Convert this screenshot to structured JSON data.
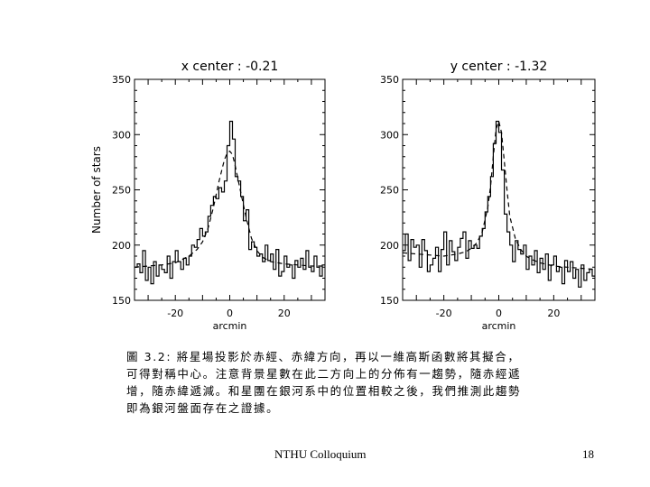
{
  "chart_data": [
    {
      "type": "line",
      "title": "x center : -0.21",
      "xlabel": "arcmin",
      "ylabel": "Number of stars",
      "xlim": [
        -35,
        35
      ],
      "ylim": [
        150,
        350
      ],
      "xticks": [
        -20,
        0,
        20
      ],
      "yticks": [
        150,
        200,
        250,
        300,
        350
      ],
      "grid": false,
      "series": [
        {
          "style": "histogram",
          "x": [
            -35,
            -34,
            -33,
            -32,
            -31,
            -30,
            -29,
            -28,
            -27,
            -26,
            -25,
            -24,
            -23,
            -22,
            -21,
            -20,
            -19,
            -18,
            -17,
            -16,
            -15,
            -14,
            -13,
            -12,
            -11,
            -10,
            -9,
            -8,
            -7,
            -6,
            -5,
            -4,
            -3,
            -2,
            -1,
            0,
            1,
            2,
            3,
            4,
            5,
            6,
            7,
            8,
            9,
            10,
            11,
            12,
            13,
            14,
            15,
            16,
            17,
            18,
            19,
            20,
            21,
            22,
            23,
            24,
            25,
            26,
            27,
            28,
            29,
            30,
            31,
            32,
            33,
            34
          ],
          "values": [
            180,
            183,
            175,
            195,
            168,
            180,
            165,
            185,
            172,
            182,
            178,
            175,
            190,
            170,
            185,
            195,
            185,
            178,
            188,
            182,
            190,
            200,
            198,
            205,
            215,
            208,
            212,
            226,
            236,
            244,
            242,
            252,
            248,
            258,
            290,
            312,
            296,
            262,
            258,
            244,
            222,
            232,
            196,
            203,
            198,
            190,
            192,
            185,
            200,
            186,
            192,
            178,
            196,
            172,
            176,
            190,
            180,
            182,
            170,
            186,
            180,
            188,
            178,
            195,
            180,
            176,
            190,
            180,
            172,
            182
          ]
        },
        {
          "style": "dashed",
          "x": [
            -35,
            -30,
            -25,
            -20,
            -15,
            -12,
            -10,
            -8,
            -6,
            -4,
            -2,
            -1,
            0,
            1,
            2,
            4,
            6,
            8,
            10,
            12,
            15,
            20,
            25,
            30,
            35
          ],
          "values": [
            180,
            181,
            182,
            184,
            190,
            196,
            203,
            215,
            234,
            257,
            277,
            283,
            285,
            282,
            272,
            248,
            225,
            206,
            195,
            189,
            185,
            183,
            182,
            181,
            181
          ]
        }
      ]
    },
    {
      "type": "line",
      "title": "y center : -1.32",
      "xlabel": "arcmin",
      "ylabel": "",
      "xlim": [
        -35,
        35
      ],
      "ylim": [
        150,
        350
      ],
      "xticks": [
        -20,
        0,
        20
      ],
      "yticks": [
        150,
        200,
        250,
        300,
        350
      ],
      "grid": false,
      "series": [
        {
          "style": "histogram",
          "x": [
            -35,
            -34,
            -33,
            -32,
            -31,
            -30,
            -29,
            -28,
            -27,
            -26,
            -25,
            -24,
            -23,
            -22,
            -21,
            -20,
            -19,
            -18,
            -17,
            -16,
            -15,
            -14,
            -13,
            -12,
            -11,
            -10,
            -9,
            -8,
            -7,
            -6,
            -5,
            -4,
            -3,
            -2,
            -1,
            0,
            1,
            2,
            3,
            4,
            5,
            6,
            7,
            8,
            9,
            10,
            11,
            12,
            13,
            14,
            15,
            16,
            17,
            18,
            19,
            20,
            21,
            22,
            23,
            24,
            25,
            26,
            27,
            28,
            29,
            30,
            31,
            32,
            33,
            34
          ],
          "values": [
            195,
            210,
            186,
            205,
            198,
            200,
            180,
            205,
            195,
            176,
            182,
            188,
            198,
            176,
            196,
            212,
            182,
            204,
            194,
            186,
            198,
            206,
            212,
            188,
            204,
            197,
            200,
            197,
            208,
            215,
            230,
            244,
            262,
            292,
            312,
            302,
            268,
            228,
            212,
            200,
            185,
            204,
            196,
            192,
            200,
            178,
            190,
            182,
            195,
            175,
            188,
            178,
            192,
            168,
            182,
            190,
            176,
            180,
            165,
            186,
            176,
            185,
            170,
            178,
            162,
            182,
            168,
            175,
            178,
            172
          ]
        },
        {
          "style": "dashed",
          "x": [
            -35,
            -30,
            -25,
            -20,
            -15,
            -12,
            -10,
            -8,
            -6,
            -4,
            -3,
            -2,
            -1,
            0,
            1,
            2,
            3,
            4,
            6,
            8,
            10,
            12,
            15,
            20,
            25,
            30,
            35
          ],
          "values": [
            193,
            192,
            191,
            190,
            192,
            194,
            197,
            202,
            212,
            234,
            253,
            280,
            305,
            312,
            302,
            276,
            250,
            226,
            206,
            196,
            190,
            187,
            184,
            181,
            180,
            179,
            178
          ]
        }
      ]
    }
  ],
  "caption": {
    "lines": [
      "圖 3.2: 將星場投影於赤經、赤緯方向，再以一維高斯函數將其擬合，",
      "可得對稱中心。注意背景星數在此二方向上的分佈有一趨勢，隨赤經遞",
      "增，隨赤緯遞減。和星團在銀河系中的位置相較之後，我們推測此趨勢",
      "即為銀河盤面存在之證據。"
    ]
  },
  "footer": {
    "center_text": "NTHU Colloquium",
    "page_number": "18"
  }
}
